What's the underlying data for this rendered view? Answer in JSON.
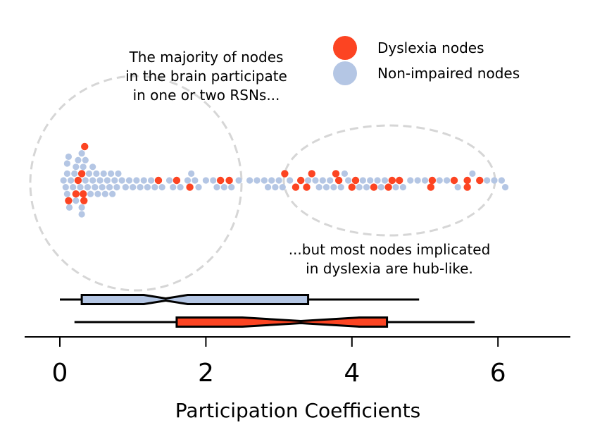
{
  "chart_data": {
    "type": "scatter",
    "title": "",
    "xlabel": "Participation Coefficients",
    "ylabel": "",
    "xlim": [
      -0.5,
      7.0
    ],
    "xticks": [
      0,
      2,
      4,
      6
    ],
    "grid": false,
    "legend": {
      "placement": "top-right"
    },
    "colors": {
      "dyslexia": "#fc4422",
      "non_impaired": "#b4c6e4",
      "dashed": "#d6d6d6"
    },
    "series": [
      {
        "name": "Dyslexia nodes",
        "values": [
          0.12,
          0.22,
          0.32,
          0.3,
          0.33,
          0.34,
          0.25,
          1.35,
          1.6,
          1.78,
          2.2,
          2.32,
          3.08,
          3.23,
          3.3,
          3.38,
          3.45,
          3.78,
          3.82,
          4.0,
          4.05,
          4.3,
          4.55,
          4.5,
          4.65,
          5.08,
          5.1,
          5.4,
          5.58,
          5.58,
          5.75
        ]
      },
      {
        "name": "Non-impaired nodes",
        "values": [
          0.05,
          0.08,
          0.1,
          0.1,
          0.1,
          0.12,
          0.13,
          0.15,
          0.18,
          0.2,
          0.22,
          0.22,
          0.25,
          0.28,
          0.3,
          0.3,
          0.3,
          0.32,
          0.35,
          0.35,
          0.38,
          0.4,
          0.42,
          0.45,
          0.45,
          0.48,
          0.5,
          0.52,
          0.55,
          0.58,
          0.6,
          0.62,
          0.65,
          0.68,
          0.7,
          0.72,
          0.75,
          0.78,
          0.8,
          0.85,
          0.9,
          0.95,
          1.0,
          1.05,
          1.1,
          1.15,
          1.2,
          1.25,
          1.3,
          1.4,
          1.5,
          1.55,
          1.65,
          1.75,
          1.8,
          1.85,
          1.9,
          2.0,
          2.1,
          2.15,
          2.25,
          2.35,
          2.45,
          2.6,
          2.7,
          2.8,
          2.85,
          2.9,
          2.95,
          3.0,
          3.05,
          3.15,
          3.4,
          3.5,
          3.55,
          3.6,
          3.65,
          3.7,
          3.75,
          3.85,
          3.9,
          3.95,
          4.1,
          4.15,
          4.2,
          4.25,
          4.35,
          4.4,
          4.45,
          4.6,
          4.7,
          4.8,
          4.9,
          5.0,
          5.2,
          5.3,
          5.45,
          5.65,
          5.85,
          5.95,
          6.05,
          6.1
        ]
      }
    ],
    "boxplots": [
      {
        "name": "Non-impaired nodes",
        "whisker_low": 0.0,
        "q1": 0.3,
        "median": 1.45,
        "q3": 3.4,
        "whisker_high": 4.92,
        "notch_low": 1.15,
        "notch_high": 1.75
      },
      {
        "name": "Dyslexia nodes",
        "whisker_low": 0.2,
        "q1": 1.6,
        "median": 3.3,
        "q3": 4.48,
        "whisker_high": 5.68,
        "notch_low": 2.5,
        "notch_high": 4.1
      }
    ],
    "annotations": [
      "The majority of nodes",
      "in the brain participate",
      "in one or two RSNs...",
      "...but most nodes implicated",
      "in dyslexia are hub-like."
    ]
  },
  "legend": {
    "items": [
      {
        "label": "Dyslexia nodes",
        "color": "#fc4422"
      },
      {
        "label": "Non-impaired nodes",
        "color": "#b4c6e4"
      }
    ]
  }
}
